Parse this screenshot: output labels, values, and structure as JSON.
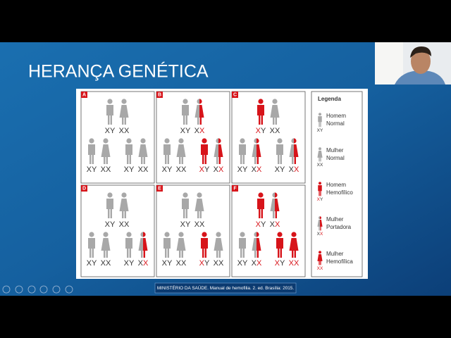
{
  "slide": {
    "title": "HERANÇA GENÉTICA",
    "citation": "MINISTÉRIO DA SAÚDE. Manual de hemofilia. 2. ed. Brasília: 2015."
  },
  "panels": [
    {
      "letter": "A",
      "parents": [
        {
          "label": "XY",
          "status": "normal"
        },
        {
          "label": "XX",
          "status": "normal"
        }
      ],
      "children": [
        {
          "label": "XY",
          "status": "normal"
        },
        {
          "label": "XX",
          "status": "normal"
        },
        {
          "label": "XY",
          "status": "normal"
        },
        {
          "label": "XX",
          "status": "normal"
        }
      ]
    },
    {
      "letter": "B",
      "parents": [
        {
          "label": "XY",
          "status": "normal"
        },
        {
          "label": "XX",
          "status": "carrier"
        }
      ],
      "children": [
        {
          "label": "XY",
          "status": "normal"
        },
        {
          "label": "XX",
          "status": "normal"
        },
        {
          "label": "XY",
          "status": "affected"
        },
        {
          "label": "XX",
          "status": "carrier"
        }
      ]
    },
    {
      "letter": "C",
      "parents": [
        {
          "label": "XY",
          "status": "affected"
        },
        {
          "label": "XX",
          "status": "normal"
        }
      ],
      "children": [
        {
          "label": "XY",
          "status": "normal"
        },
        {
          "label": "XX",
          "status": "carrier"
        },
        {
          "label": "XY",
          "status": "normal"
        },
        {
          "label": "XX",
          "status": "carrier"
        }
      ]
    },
    {
      "letter": "D",
      "parents": [
        {
          "label": "XY",
          "status": "normal"
        },
        {
          "label": "XX",
          "status": "normal"
        }
      ],
      "children": [
        {
          "label": "XY",
          "status": "normal"
        },
        {
          "label": "XX",
          "status": "normal"
        },
        {
          "label": "XY",
          "status": "normal"
        },
        {
          "label": "XX",
          "status": "carrier"
        }
      ]
    },
    {
      "letter": "E",
      "parents": [
        {
          "label": "XY",
          "status": "normal"
        },
        {
          "label": "XX",
          "status": "normal"
        }
      ],
      "children": [
        {
          "label": "XY",
          "status": "normal"
        },
        {
          "label": "XX",
          "status": "normal"
        },
        {
          "label": "XY",
          "status": "affected"
        },
        {
          "label": "XX",
          "status": "normal"
        }
      ]
    },
    {
      "letter": "F",
      "parents": [
        {
          "label": "XY",
          "status": "affected"
        },
        {
          "label": "XX",
          "status": "carrier"
        }
      ],
      "children": [
        {
          "label": "XY",
          "status": "normal"
        },
        {
          "label": "XX",
          "status": "carrier"
        },
        {
          "label": "XY",
          "status": "affected"
        },
        {
          "label": "XX",
          "status": "affected-female"
        }
      ]
    }
  ],
  "legend": {
    "title": "Legenda",
    "items": [
      {
        "lines": [
          "Homem",
          "Normal"
        ],
        "label": "XY",
        "status": "normal"
      },
      {
        "lines": [
          "Mulher",
          "Normal"
        ],
        "label": "XX",
        "status": "normal"
      },
      {
        "lines": [
          "Homem",
          "Hemofílico"
        ],
        "label": "XY",
        "status": "affected"
      },
      {
        "lines": [
          "Mulher",
          "Portadora"
        ],
        "label": "XX",
        "status": "carrier"
      },
      {
        "lines": [
          "Mulher",
          "Hemofílica"
        ],
        "label": "XX",
        "status": "affected-female"
      }
    ]
  }
}
